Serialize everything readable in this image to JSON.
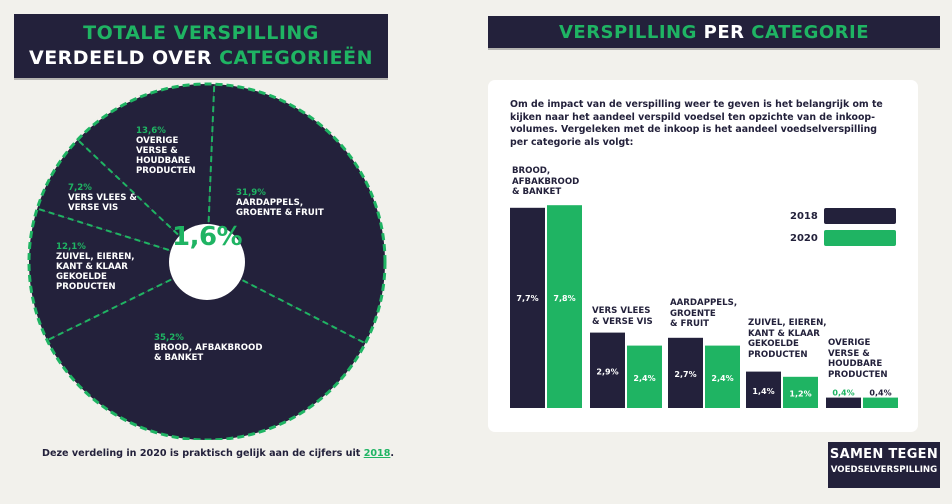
{
  "left_title": {
    "line1": "TOTALE VERSPILLING",
    "line2_white": "VERDEELD OVER ",
    "line2_green": "CATEGORIEËN"
  },
  "right_title": {
    "green1": "VERSPILLING ",
    "white": "PER ",
    "green2": "CATEGORIE"
  },
  "colors": {
    "navy": "#23213b",
    "green": "#1fb463",
    "background": "#f2f1ec",
    "card": "#ffffff"
  },
  "intro_text": "Om de impact van de verspilling weer te geven is het belangrijk om te kijken naar het aandeel verspild voedsel ten opzichte van de inkoop-volumes. Vergeleken met de inkoop is het aandeel voedselverspilling per categorie als volgt:",
  "footnote": {
    "text": "Deze verdeling in 2020 is praktisch gelijk aan de cijfers uit ",
    "year": "2018",
    "end": "."
  },
  "logo": {
    "line1": "SAMEN TEGEN",
    "line2": "VOEDSELVERSPILLING"
  },
  "chart_data": [
    {
      "type": "pie",
      "center_label": "1,6%",
      "slices": [
        {
          "label": "AARDAPPELS, GROENTE & FRUIT",
          "value_label": "31,9%",
          "value": 31.9
        },
        {
          "label": "BROOD, AFBAKBROOD & BANKET",
          "value_label": "35,2%",
          "value": 35.2
        },
        {
          "label": "ZUIVEL, EIEREN, KANT & KLAAR GEKOELDE PRODUCTEN",
          "value_label": "12,1%",
          "value": 12.1
        },
        {
          "label": "VERS VLEES & VERSE VIS",
          "value_label": "7,2%",
          "value": 7.2
        },
        {
          "label": "OVERIGE VERSE & HOUDBARE PRODUCTEN",
          "value_label": "13,6%",
          "value": 13.6
        }
      ]
    },
    {
      "type": "bar",
      "categories": [
        "BROOD, AFBAKBROOD & BANKET",
        "VERS VLEES & VERSE VIS",
        "AARDAPPELS, GROENTE & FRUIT",
        "ZUIVEL, EIEREN, KANT & KLAAR GEKOELDE PRODUCTEN",
        "OVERIGE VERSE & HOUDBARE PRODUCTEN"
      ],
      "category_labels": [
        "BROOD,\nAFBAKBROOD\n& BANKET",
        "VERS VLEES\n& VERSE VIS",
        "AARDAPPELS,\nGROENTE\n& FRUIT",
        "ZUIVEL, EIEREN,\nKANT & KLAAR\nGEKOELDE\nPRODUCTEN",
        "OVERIGE\nVERSE &\nHOUDBARE\nPRODUCTEN"
      ],
      "series": [
        {
          "name": "2018",
          "values": [
            7.7,
            2.9,
            2.7,
            1.4,
            0.4
          ],
          "value_labels": [
            "7,7%",
            "2,9%",
            "2,7%",
            "1,4%",
            "0,4%"
          ]
        },
        {
          "name": "2020",
          "values": [
            7.8,
            2.4,
            2.4,
            1.2,
            0.4
          ],
          "value_labels": [
            "7,8%",
            "2,4%",
            "2,4%",
            "1,2%",
            "0,4%"
          ]
        }
      ],
      "legend_position": "top-right"
    }
  ]
}
